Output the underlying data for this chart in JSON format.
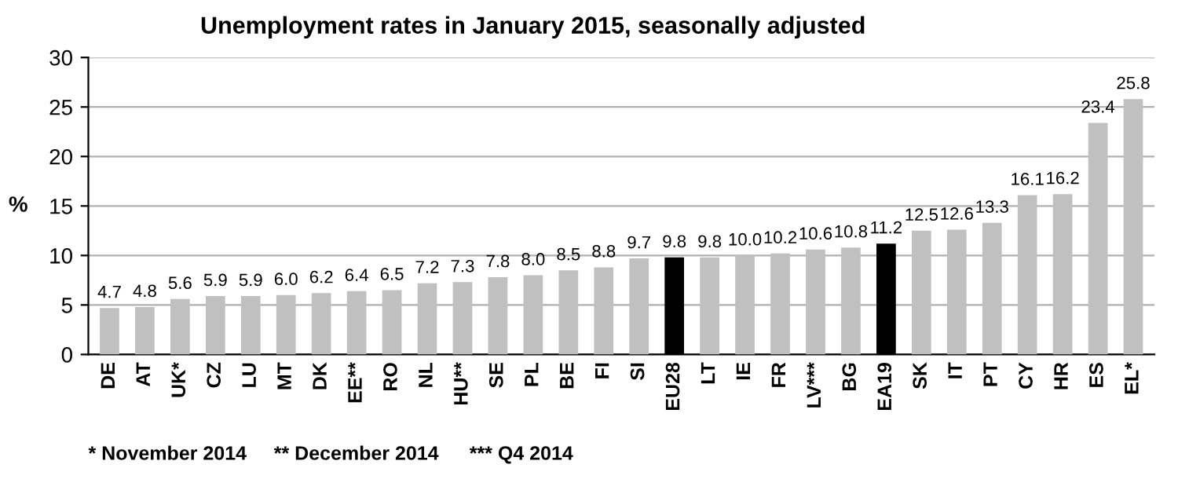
{
  "chart_data": {
    "type": "bar",
    "title": "Unemployment rates in January 2015, seasonally adjusted",
    "ylabel": "%",
    "categories": [
      "DE",
      "AT",
      "UK*",
      "CZ",
      "LU",
      "MT",
      "DK",
      "EE**",
      "RO",
      "NL",
      "HU**",
      "SE",
      "PL",
      "BE",
      "FI",
      "SI",
      "EU28",
      "LT",
      "IE",
      "FR",
      "LV***",
      "BG",
      "EA19",
      "SK",
      "IT",
      "PT",
      "CY",
      "HR",
      "ES",
      "EL*"
    ],
    "values": [
      4.7,
      4.8,
      5.6,
      5.9,
      5.9,
      6.0,
      6.2,
      6.4,
      6.5,
      7.2,
      7.3,
      7.8,
      8.0,
      8.5,
      8.8,
      9.7,
      9.8,
      9.8,
      10.0,
      10.2,
      10.6,
      10.8,
      11.2,
      12.5,
      12.6,
      13.3,
      16.1,
      16.2,
      23.4,
      25.8
    ],
    "value_labels": [
      "4.7",
      "4.8",
      "5.6",
      "5.9",
      "5.9",
      "6.0",
      "6.2",
      "6.4",
      "6.5",
      "7.2",
      "7.3",
      "7.8",
      "8.0",
      "8.5",
      "8.8",
      "9.7",
      "9.8",
      "9.8",
      "10.0",
      "10.2",
      "10.6",
      "10.8",
      "11.2",
      "12.5",
      "12.6",
      "13.3",
      "16.1",
      "16.2",
      "23.4",
      "25.8"
    ],
    "colors": [
      "#c0c0c0",
      "#c0c0c0",
      "#c0c0c0",
      "#c0c0c0",
      "#c0c0c0",
      "#c0c0c0",
      "#c0c0c0",
      "#c0c0c0",
      "#c0c0c0",
      "#c0c0c0",
      "#c0c0c0",
      "#c0c0c0",
      "#c0c0c0",
      "#c0c0c0",
      "#c0c0c0",
      "#c0c0c0",
      "#000000",
      "#c0c0c0",
      "#c0c0c0",
      "#c0c0c0",
      "#c0c0c0",
      "#c0c0c0",
      "#000000",
      "#c0c0c0",
      "#c0c0c0",
      "#c0c0c0",
      "#c0c0c0",
      "#c0c0c0",
      "#c0c0c0",
      "#c0c0c0"
    ],
    "ylim": [
      0,
      30
    ],
    "yticks": [
      0,
      5,
      10,
      15,
      20,
      25,
      30
    ],
    "grid": "y",
    "annotations": [
      "* November 2014",
      "** December 2014",
      "*** Q4 2014"
    ]
  }
}
